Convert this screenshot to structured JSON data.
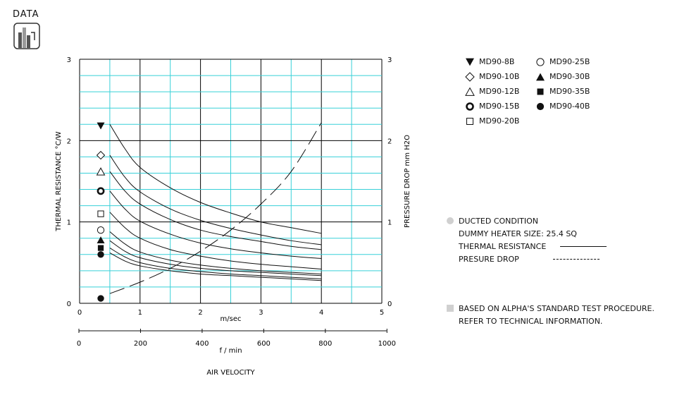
{
  "header": {
    "label": "DATA",
    "logo_icon": "bar-chart-icon"
  },
  "chart_data": {
    "type": "line",
    "ylabel_left": "THERMAL RESISTANCE  °C/W",
    "ylabel_right": "PRESSURE DROP  mm H2O",
    "xlabel_ms": "m/sec",
    "xlabel_fmin": "f / min",
    "xlabel_main": "AIR VELOCITY",
    "ylim": [
      0,
      3
    ],
    "xlim_ms": [
      0,
      5
    ],
    "xlim_fmin": [
      0,
      1000
    ],
    "yticks": [
      "0",
      "1",
      "2",
      "3"
    ],
    "xticks_ms": [
      "0",
      "1",
      "2",
      "3",
      "4",
      "5"
    ],
    "xticks_fmin": [
      "0",
      "200",
      "400",
      "600",
      "800",
      "1000"
    ],
    "grid": true,
    "series": [
      {
        "name": "MD90-8B",
        "symbol": "triangle-down-filled",
        "start_value": 2.18,
        "x": [
          0.5,
          0.75,
          1.0,
          1.5,
          2.0,
          2.5,
          3.0,
          3.5,
          4.0
        ],
        "y": [
          2.2,
          1.9,
          1.67,
          1.42,
          1.24,
          1.11,
          1.0,
          0.93,
          0.86
        ]
      },
      {
        "name": "MD90-10B",
        "symbol": "diamond-open",
        "start_value": 1.82,
        "x": [
          0.5,
          0.75,
          1.0,
          1.5,
          2.0,
          2.5,
          3.0,
          3.5,
          4.0
        ],
        "y": [
          1.82,
          1.55,
          1.37,
          1.16,
          1.02,
          0.92,
          0.84,
          0.77,
          0.72
        ]
      },
      {
        "name": "MD90-12B",
        "symbol": "triangle-open",
        "start_value": 1.62,
        "x": [
          0.5,
          0.75,
          1.0,
          1.5,
          2.0,
          2.5,
          3.0,
          3.5,
          4.0
        ],
        "y": [
          1.62,
          1.38,
          1.22,
          1.03,
          0.9,
          0.82,
          0.76,
          0.7,
          0.66
        ]
      },
      {
        "name": "MD90-15B",
        "symbol": "circle-bold",
        "start_value": 1.38,
        "x": [
          0.5,
          0.75,
          1.0,
          1.5,
          2.0,
          2.5,
          3.0,
          3.5,
          4.0
        ],
        "y": [
          1.38,
          1.16,
          1.01,
          0.85,
          0.74,
          0.67,
          0.62,
          0.58,
          0.55
        ]
      },
      {
        "name": "MD90-20B",
        "symbol": "square-open",
        "start_value": 1.1,
        "x": [
          0.5,
          0.75,
          1.0,
          1.5,
          2.0,
          2.5,
          3.0,
          3.5,
          4.0
        ],
        "y": [
          1.12,
          0.93,
          0.8,
          0.66,
          0.58,
          0.52,
          0.48,
          0.45,
          0.42
        ]
      },
      {
        "name": "MD90-25B",
        "symbol": "circle-open",
        "start_value": 0.9,
        "x": [
          0.5,
          0.75,
          1.0,
          1.5,
          2.0,
          2.5,
          3.0,
          3.5,
          4.0
        ],
        "y": [
          0.88,
          0.73,
          0.63,
          0.53,
          0.47,
          0.43,
          0.4,
          0.38,
          0.36
        ]
      },
      {
        "name": "MD90-30B",
        "symbol": "triangle-up-filled",
        "start_value": 0.78,
        "x": [
          0.5,
          0.75,
          1.0,
          1.5,
          2.0,
          2.5,
          3.0,
          3.5,
          4.0
        ],
        "y": [
          0.77,
          0.64,
          0.56,
          0.48,
          0.43,
          0.4,
          0.38,
          0.36,
          0.34
        ]
      },
      {
        "name": "MD90-35B",
        "symbol": "square-filled",
        "start_value": 0.68,
        "x": [
          0.5,
          0.75,
          1.0,
          1.5,
          2.0,
          2.5,
          3.0,
          3.5,
          4.0
        ],
        "y": [
          0.68,
          0.57,
          0.5,
          0.43,
          0.39,
          0.36,
          0.34,
          0.32,
          0.3
        ]
      },
      {
        "name": "MD90-40B",
        "symbol": "circle-filled",
        "start_value": 0.6,
        "x": [
          0.5,
          0.75,
          1.0,
          1.5,
          2.0,
          2.5,
          3.0,
          3.5,
          4.0
        ],
        "y": [
          0.62,
          0.52,
          0.46,
          0.4,
          0.36,
          0.34,
          0.32,
          0.3,
          0.28
        ]
      }
    ],
    "pressure_drop": {
      "x": [
        0.5,
        1.0,
        1.5,
        2.0,
        2.5,
        3.0,
        3.5,
        4.0
      ],
      "y": [
        0.12,
        0.26,
        0.43,
        0.64,
        0.9,
        1.22,
        1.62,
        2.22
      ]
    },
    "extra_marker": {
      "symbol": "circle-filled",
      "value": 0.06
    }
  },
  "notes": {
    "ducted": "DUCTED CONDITION",
    "dummy_heater": "DUMMY HEATER SIZE: 25.4 SQ",
    "thermal_resistance": "THERMAL RESISTANCE",
    "pressure_drop": "PRESURE DROP",
    "based_on": "BASED ON ALPHA'S STANDARD TEST PROCEDURE.",
    "refer_to": "REFER TO TECHNICAL INFORMATION."
  },
  "colors": {
    "grid_major": "#000000",
    "grid_minor": "#38d0d8",
    "curve": "#111111",
    "bullet": "#d0d0d0"
  }
}
